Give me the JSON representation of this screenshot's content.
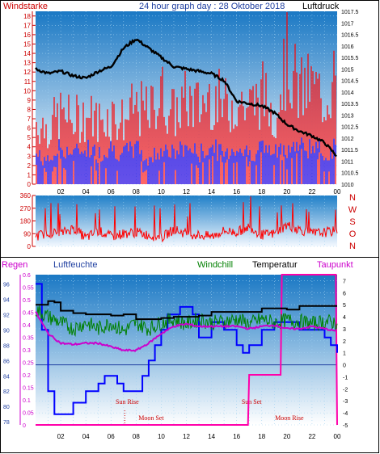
{
  "chart_data": [
    {
      "type": "line",
      "title": "24 hour graph day : 28 Oktober 2018",
      "left_axis_label": "Windstarke",
      "right_axis_label": "Luftdruck",
      "y_left_ticks": [
        0,
        1,
        2,
        3,
        4,
        5,
        6,
        7,
        8,
        9,
        10,
        11,
        12,
        13,
        14,
        15,
        16,
        17,
        18
      ],
      "y_left_lim": [
        0,
        18.5
      ],
      "y_right_ticks": [
        "1010",
        "1010.5",
        "1011",
        "1011.5",
        "1012",
        "1012.5",
        "1013",
        "1013.5",
        "1014",
        "1014.5",
        "1015",
        "1015.5",
        "1016",
        "1016.5",
        "1017",
        "1017.5"
      ],
      "y_right_lim": [
        1010,
        1017.5
      ],
      "x_ticks": [
        "02",
        "04",
        "06",
        "08",
        "10",
        "12",
        "14",
        "16",
        "18",
        "20",
        "22",
        "00"
      ],
      "x_range_hours": [
        0,
        24
      ],
      "series": [
        {
          "name": "",
          "color": "#000000",
          "x": [
            0,
            1,
            2,
            3,
            4,
            5,
            6,
            7,
            8,
            9,
            10,
            11,
            12,
            13,
            14,
            15,
            16,
            17,
            18,
            19,
            20,
            21,
            22,
            23,
            24
          ],
          "values": [
            1015,
            1014.8,
            1014.9,
            1014.7,
            1014.6,
            1014.9,
            1015.1,
            1015.9,
            1016.3,
            1015.9,
            1015.5,
            1015.1,
            1015,
            1014.9,
            1014.8,
            1014.5,
            1013.6,
            1013.5,
            1013.4,
            1013.1,
            1012.6,
            1012.3,
            1012.1,
            1011.8,
            1011.2
          ],
          "axis": "right"
        },
        {
          "name": "",
          "color": "#ff0000",
          "x": [
            0,
            1,
            2,
            3,
            4,
            5,
            6,
            7,
            8,
            9,
            10,
            11,
            12,
            13,
            14,
            15,
            16,
            17,
            18,
            19,
            20,
            21,
            22,
            23,
            24
          ],
          "values": [
            9,
            8,
            10,
            9,
            10,
            9,
            10,
            9,
            11,
            10,
            13,
            10,
            12,
            11,
            13,
            11,
            12,
            11,
            13,
            10,
            18,
            13,
            14,
            12,
            16
          ],
          "style": "gust-bars"
        },
        {
          "name": "",
          "color": "#0000ff",
          "x": [
            0,
            1,
            2,
            3,
            4,
            5,
            6,
            7,
            8,
            9,
            10,
            11,
            12,
            13,
            14,
            15,
            16,
            17,
            18,
            19,
            20,
            21,
            22,
            23,
            24
          ],
          "values": [
            4,
            3,
            5,
            4,
            5,
            4,
            5,
            4,
            5,
            3,
            5,
            4,
            5,
            4,
            5,
            4,
            5,
            4,
            5,
            4,
            5,
            5,
            5,
            4,
            5
          ],
          "style": "wind-bars"
        }
      ]
    },
    {
      "type": "line",
      "right_axis_label": "N W S O N",
      "right_axis_letters": [
        "N",
        "W",
        "S",
        "O",
        "N"
      ],
      "y_ticks": [
        0,
        90,
        180,
        270,
        360
      ],
      "y_lim": [
        0,
        360
      ],
      "x_range_hours": [
        0,
        24
      ],
      "series": [
        {
          "name": "",
          "color": "#ff0000",
          "x": [
            0,
            1,
            2,
            3,
            4,
            5,
            6,
            7,
            8,
            9,
            10,
            11,
            12,
            13,
            14,
            15,
            16,
            17,
            18,
            19,
            20,
            21,
            22,
            23,
            24
          ],
          "values": [
            70,
            100,
            90,
            130,
            60,
            110,
            70,
            90,
            100,
            80,
            60,
            120,
            90,
            80,
            70,
            110,
            100,
            140,
            80,
            90,
            150,
            120,
            90,
            100,
            110
          ]
        }
      ]
    },
    {
      "type": "line",
      "label_regen": "Regen",
      "label_luftfeuchte": "Luftfeuchte",
      "label_windchill": "Windchill",
      "label_temperatur": "Temperatur",
      "label_taupunkt": "Taupunkt",
      "y_regen_ticks": [
        "0",
        "0.05",
        "0.1",
        "0.15",
        "0.2",
        "0.25",
        "0.3",
        "0.35",
        "0.4",
        "0.45",
        "0.5",
        "0.55",
        "0.6"
      ],
      "y_regen_lim": [
        0,
        0.6
      ],
      "y_humidity_ticks": [
        78,
        80,
        82,
        84,
        86,
        88,
        90,
        92,
        94,
        96
      ],
      "y_humidity_lim": [
        77.6,
        97.2
      ],
      "y_temp_ticks": [
        -5,
        -4,
        -3,
        -2,
        -1,
        0,
        1,
        2,
        3,
        4,
        5,
        6,
        7
      ],
      "y_temp_lim": [
        -5,
        7.5
      ],
      "x_ticks": [
        "02",
        "04",
        "06",
        "08",
        "10",
        "12",
        "14",
        "16",
        "18",
        "20",
        "22",
        "00"
      ],
      "x_range_hours": [
        0,
        24
      ],
      "annotations": [
        {
          "text": "Sun Rise",
          "x": 7.1
        },
        {
          "text": "Moon Set",
          "x": 9.0
        },
        {
          "text": "Sun Set",
          "x": 17.0
        },
        {
          "text": "Moon Rise",
          "x": 20.0
        }
      ],
      "series": [
        {
          "name": "Temperatur",
          "color": "#000000",
          "axis": "temperature",
          "x": [
            0,
            1,
            1.5,
            2,
            3,
            4,
            5,
            6,
            7,
            8,
            9,
            10,
            11,
            12,
            13,
            14,
            15,
            16,
            17,
            18,
            19,
            20,
            21,
            22,
            23,
            24
          ],
          "values": [
            5,
            5.3,
            5.2,
            4.5,
            4.3,
            4.2,
            4.2,
            4.1,
            4.2,
            3.8,
            3.8,
            3.9,
            4,
            4,
            4.1,
            4.4,
            4.4,
            4.4,
            4.4,
            4.7,
            4.7,
            4.6,
            4.9,
            4.9,
            4.9,
            4.9
          ]
        },
        {
          "name": "Windchill",
          "color": "#008000",
          "axis": "temperature",
          "x": [
            0,
            1,
            2,
            3,
            4,
            5,
            6,
            7,
            8,
            9,
            10,
            11,
            12,
            13,
            14,
            15,
            16,
            17,
            18,
            19,
            20,
            21,
            22,
            23,
            24
          ],
          "values": [
            4.6,
            4,
            3.5,
            3,
            3.5,
            3,
            3.5,
            2.8,
            3.5,
            3,
            3.5,
            3.8,
            3.4,
            3.8,
            3.5,
            3.6,
            3.8,
            3.4,
            3.8,
            3.5,
            3.7,
            3.6,
            3.4,
            3.6,
            3.5
          ]
        },
        {
          "name": "Taupunkt",
          "color": "#cc00cc",
          "axis": "temperature",
          "x": [
            0,
            1,
            2,
            3,
            4,
            5,
            6,
            7,
            8,
            9,
            10,
            11,
            12,
            13,
            14,
            15,
            16,
            17,
            18,
            19,
            20,
            21,
            22,
            23,
            24
          ],
          "values": [
            4.4,
            2.6,
            1.8,
            1.7,
            1.8,
            1.8,
            1.5,
            1.2,
            1.2,
            1.8,
            2.6,
            3.2,
            3.4,
            3.2,
            3.2,
            3.2,
            3.2,
            3,
            3.2,
            3.3,
            3,
            3,
            3.2,
            3,
            2.8
          ]
        },
        {
          "name": "Luftfeuchte",
          "color": "#0000ff",
          "axis": "humidity",
          "x": [
            0,
            0.5,
            1,
            1.5,
            2,
            3,
            4,
            5,
            5.5,
            6,
            6.5,
            7,
            8,
            8.5,
            9,
            9.5,
            10,
            10.5,
            11,
            11.5,
            12,
            12.5,
            13,
            14,
            15,
            16,
            16.5,
            17,
            18,
            19,
            20,
            21,
            22,
            23,
            23.5,
            24
          ],
          "values": [
            96,
            90,
            82,
            79,
            79,
            80.5,
            82,
            83,
            84,
            84,
            83,
            82,
            82,
            84,
            86,
            88,
            90,
            92,
            92,
            93,
            93,
            92,
            89,
            91,
            90,
            88,
            87,
            88,
            90,
            91,
            91,
            90,
            90,
            89,
            88,
            87
          ]
        },
        {
          "name": "Regen",
          "color": "#ff00aa",
          "axis": "regen",
          "x": [
            0,
            16.9,
            17,
            19.5,
            19.6,
            23.9,
            24
          ],
          "values": [
            0,
            0,
            0.2,
            0.2,
            0.6,
            0.6,
            0
          ]
        }
      ]
    }
  ]
}
